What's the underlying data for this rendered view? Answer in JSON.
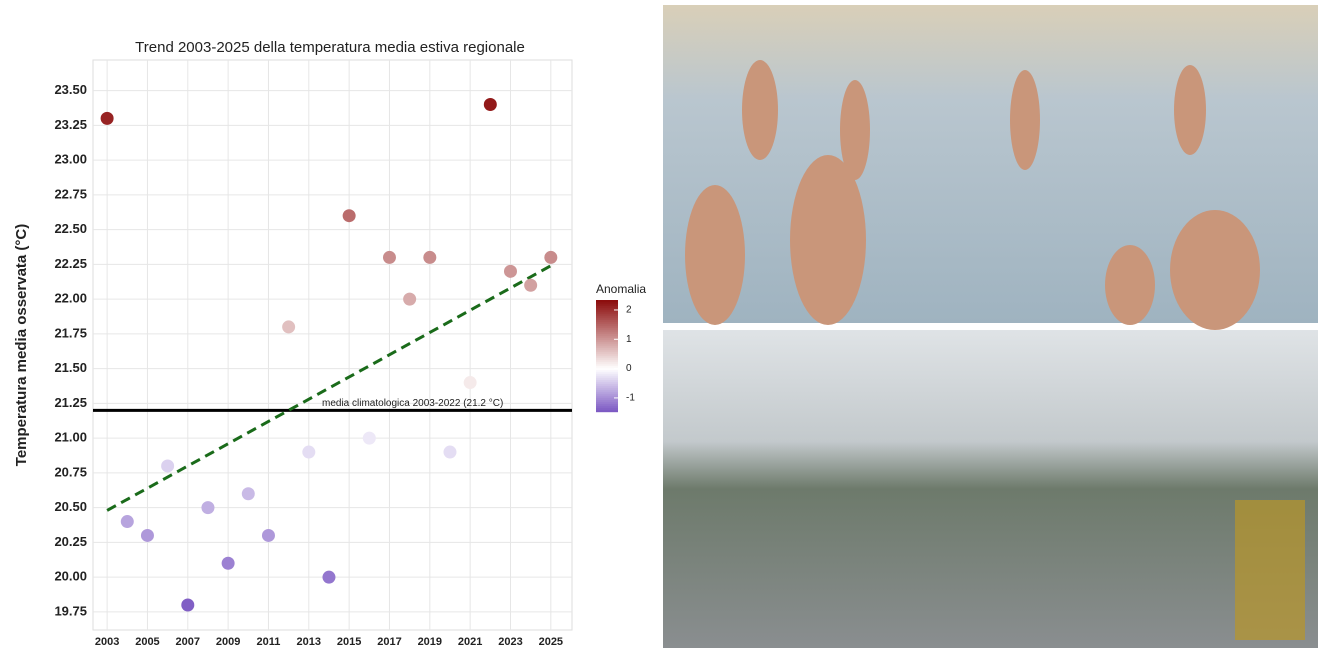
{
  "chart_data": {
    "type": "scatter",
    "title": "Trend 2003-2025 della temperatura media estiva regionale",
    "y_label": "Temperatura media osservata (°C)",
    "x": [
      2003,
      2004,
      2005,
      2006,
      2007,
      2008,
      2009,
      2010,
      2011,
      2012,
      2013,
      2014,
      2015,
      2016,
      2017,
      2018,
      2019,
      2020,
      2021,
      2022,
      2023,
      2024,
      2025
    ],
    "values": [
      23.3,
      20.4,
      20.3,
      20.8,
      19.8,
      20.5,
      20.1,
      20.6,
      20.3,
      21.8,
      20.9,
      20.0,
      22.6,
      21.0,
      22.3,
      22.0,
      22.3,
      20.9,
      21.4,
      23.4,
      22.2,
      22.1,
      22.3
    ],
    "xlim": [
      2002.3,
      2026.05
    ],
    "xticks": [
      2003,
      2005,
      2007,
      2009,
      2011,
      2013,
      2015,
      2017,
      2019,
      2021,
      2023,
      2025
    ],
    "ylim": [
      19.62,
      23.72
    ],
    "yticks": [
      19.75,
      {
        "value": 20,
        "label": "20.00"
      },
      20.25,
      {
        "value": 20.5,
        "label": "20.50"
      },
      20.75,
      {
        "value": 21,
        "label": "21.00"
      },
      21.25,
      {
        "value": 21.5,
        "label": "21.50"
      },
      21.75,
      {
        "value": 22,
        "label": "22.00"
      },
      22.25,
      {
        "value": 22.5,
        "label": "22.50"
      },
      22.75,
      {
        "value": 23,
        "label": "23.00"
      },
      23.25,
      {
        "value": 23.5,
        "label": "23.50"
      }
    ],
    "grid": true,
    "reference_line": {
      "value": 21.2,
      "label": "media climatologica 2003-2022 (21.2 °C)",
      "color": "#000000"
    },
    "trend": {
      "x": [
        2003,
        2025
      ],
      "y": [
        20.48,
        22.24
      ],
      "color": "#1a6b1a"
    },
    "color_scale": {
      "title": "Anomalia",
      "lim": [
        -1.48,
        2.34
      ],
      "ticks": [
        -1,
        0,
        1,
        2
      ],
      "colors": [
        "#7a56c2",
        "#ffffff",
        "#8b0a0a"
      ]
    }
  }
}
